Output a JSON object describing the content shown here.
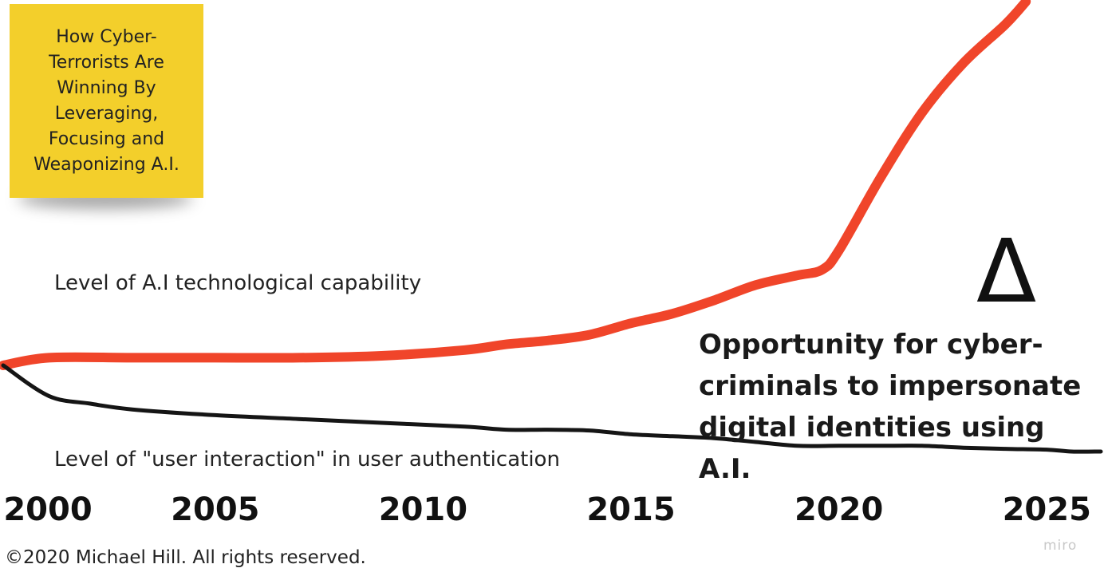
{
  "sticky_note": {
    "text": "How Cyber-Terrorists Are Winning By Leveraging, Focusing and Weaponizing A.I."
  },
  "annotation": {
    "symbol": "Δ",
    "text": "Opportunity for cyber-criminals to impersonate digital identities using A.I."
  },
  "copyright": "©2020 Michael Hill. All rights reserved.",
  "watermark": "miro",
  "colors": {
    "ai_line": "#f0452a",
    "user_line": "#151515",
    "sticky": "#f3cf2b"
  },
  "chart_data": {
    "type": "line",
    "title": "",
    "xlabel": "",
    "ylabel": "",
    "x_ticks": [
      2000,
      2005,
      2010,
      2015,
      2020,
      2025
    ],
    "xlim": [
      1999.9,
      2026.3
    ],
    "ylim": [
      0,
      100
    ],
    "grid": false,
    "series": [
      {
        "name": "Level of A.I technological capability",
        "x": [
          1999.9,
          2001,
          2003,
          2005,
          2007,
          2009,
          2011,
          2012,
          2013,
          2014,
          2015,
          2016,
          2017,
          2018,
          2019,
          2019.6,
          2020,
          2021,
          2022,
          2023,
          2024,
          2024.5
        ],
        "y": [
          5,
          7,
          7,
          7,
          7,
          7.5,
          9,
          10.5,
          11.5,
          13,
          16,
          18.5,
          22,
          26,
          28.5,
          30,
          35,
          54,
          71,
          84,
          94,
          100
        ]
      },
      {
        "name": "Level of \"user interaction\" in user authentication",
        "x": [
          1999.9,
          2001,
          2002,
          2003,
          2005,
          2007,
          2009,
          2011,
          2012,
          2013,
          2014,
          2015,
          2016,
          2017,
          2018,
          2019,
          2020,
          2021,
          2022,
          2023,
          2024,
          2025,
          2025.6,
          2026.3
        ],
        "y": [
          5,
          -3,
          -5,
          -6.5,
          -8,
          -9,
          -10,
          -11,
          -11.8,
          -11.8,
          -12,
          -13,
          -13.5,
          -14,
          -15,
          -16,
          -16,
          -16,
          -16,
          -16.5,
          -16.8,
          -17,
          -17.5,
          -17.5
        ]
      }
    ]
  }
}
